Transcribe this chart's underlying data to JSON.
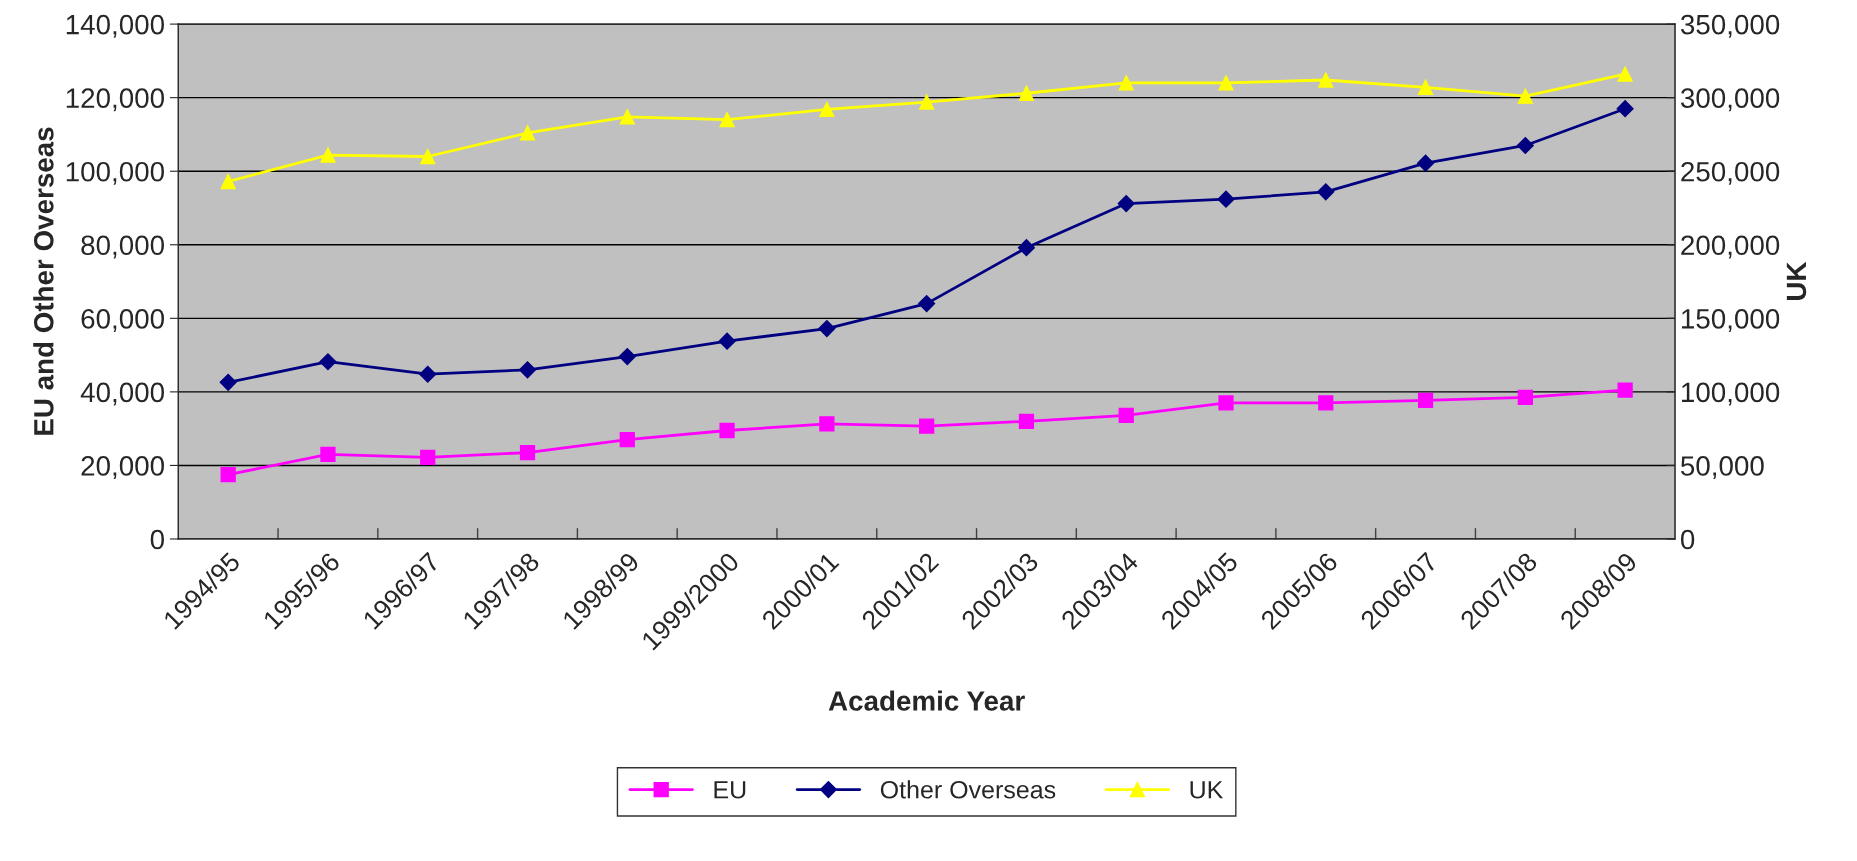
{
  "chart_data": {
    "type": "line",
    "xlabel": "Academic Year",
    "ylabel": "EU and Other Overseas",
    "y2label": "UK",
    "categories": [
      "1994/95",
      "1995/96",
      "1996/97",
      "1997/98",
      "1998/99",
      "1999/2000",
      "2000/01",
      "2001/02",
      "2002/03",
      "2003/04",
      "2004/05",
      "2005/06",
      "2006/07",
      "2007/08",
      "2008/09"
    ],
    "series": [
      {
        "name": "EU",
        "color": "#ff00ff",
        "marker": "square",
        "values": [
          17500,
          23000,
          22200,
          23500,
          27000,
          29500,
          31300,
          30700,
          32000,
          33600,
          37000,
          37000,
          37700,
          38500,
          40500
        ]
      },
      {
        "name": "Other Overseas",
        "color": "#000080",
        "marker": "diamond",
        "values": [
          42600,
          48200,
          44800,
          46000,
          49600,
          53800,
          57200,
          64000,
          79200,
          91200,
          92400,
          94400,
          102200,
          107000,
          117000
        ]
      },
      {
        "name": "UK",
        "color": "#ffff00",
        "marker": "triangle",
        "axis": "y2",
        "values": [
          243000,
          261000,
          260000,
          276000,
          287000,
          285000,
          292000,
          297000,
          303000,
          310000,
          310000,
          312000,
          307000,
          301000,
          316000
        ]
      }
    ],
    "ylim": [
      0,
      140000
    ],
    "yticks": [
      {
        "value": 0,
        "label": "0"
      },
      {
        "value": 20000,
        "label": "20,000"
      },
      {
        "value": 40000,
        "label": "40,000"
      },
      {
        "value": 60000,
        "label": "60,000"
      },
      {
        "value": 80000,
        "label": "80,000"
      },
      {
        "value": 100000,
        "label": "100,000"
      },
      {
        "value": 120000,
        "label": "120,000"
      },
      {
        "value": 140000,
        "label": "140,000"
      }
    ],
    "y2lim": [
      0,
      350000
    ],
    "y2ticks": [
      {
        "value": 0,
        "label": "0"
      },
      {
        "value": 50000,
        "label": "50,000"
      },
      {
        "value": 100000,
        "label": "100,000"
      },
      {
        "value": 150000,
        "label": "150,000"
      },
      {
        "value": 200000,
        "label": "200,000"
      },
      {
        "value": 250000,
        "label": "250,000"
      },
      {
        "value": 300000,
        "label": "300,000"
      },
      {
        "value": 350000,
        "label": "350,000"
      }
    ],
    "grid": "y",
    "legend": "bottom"
  }
}
